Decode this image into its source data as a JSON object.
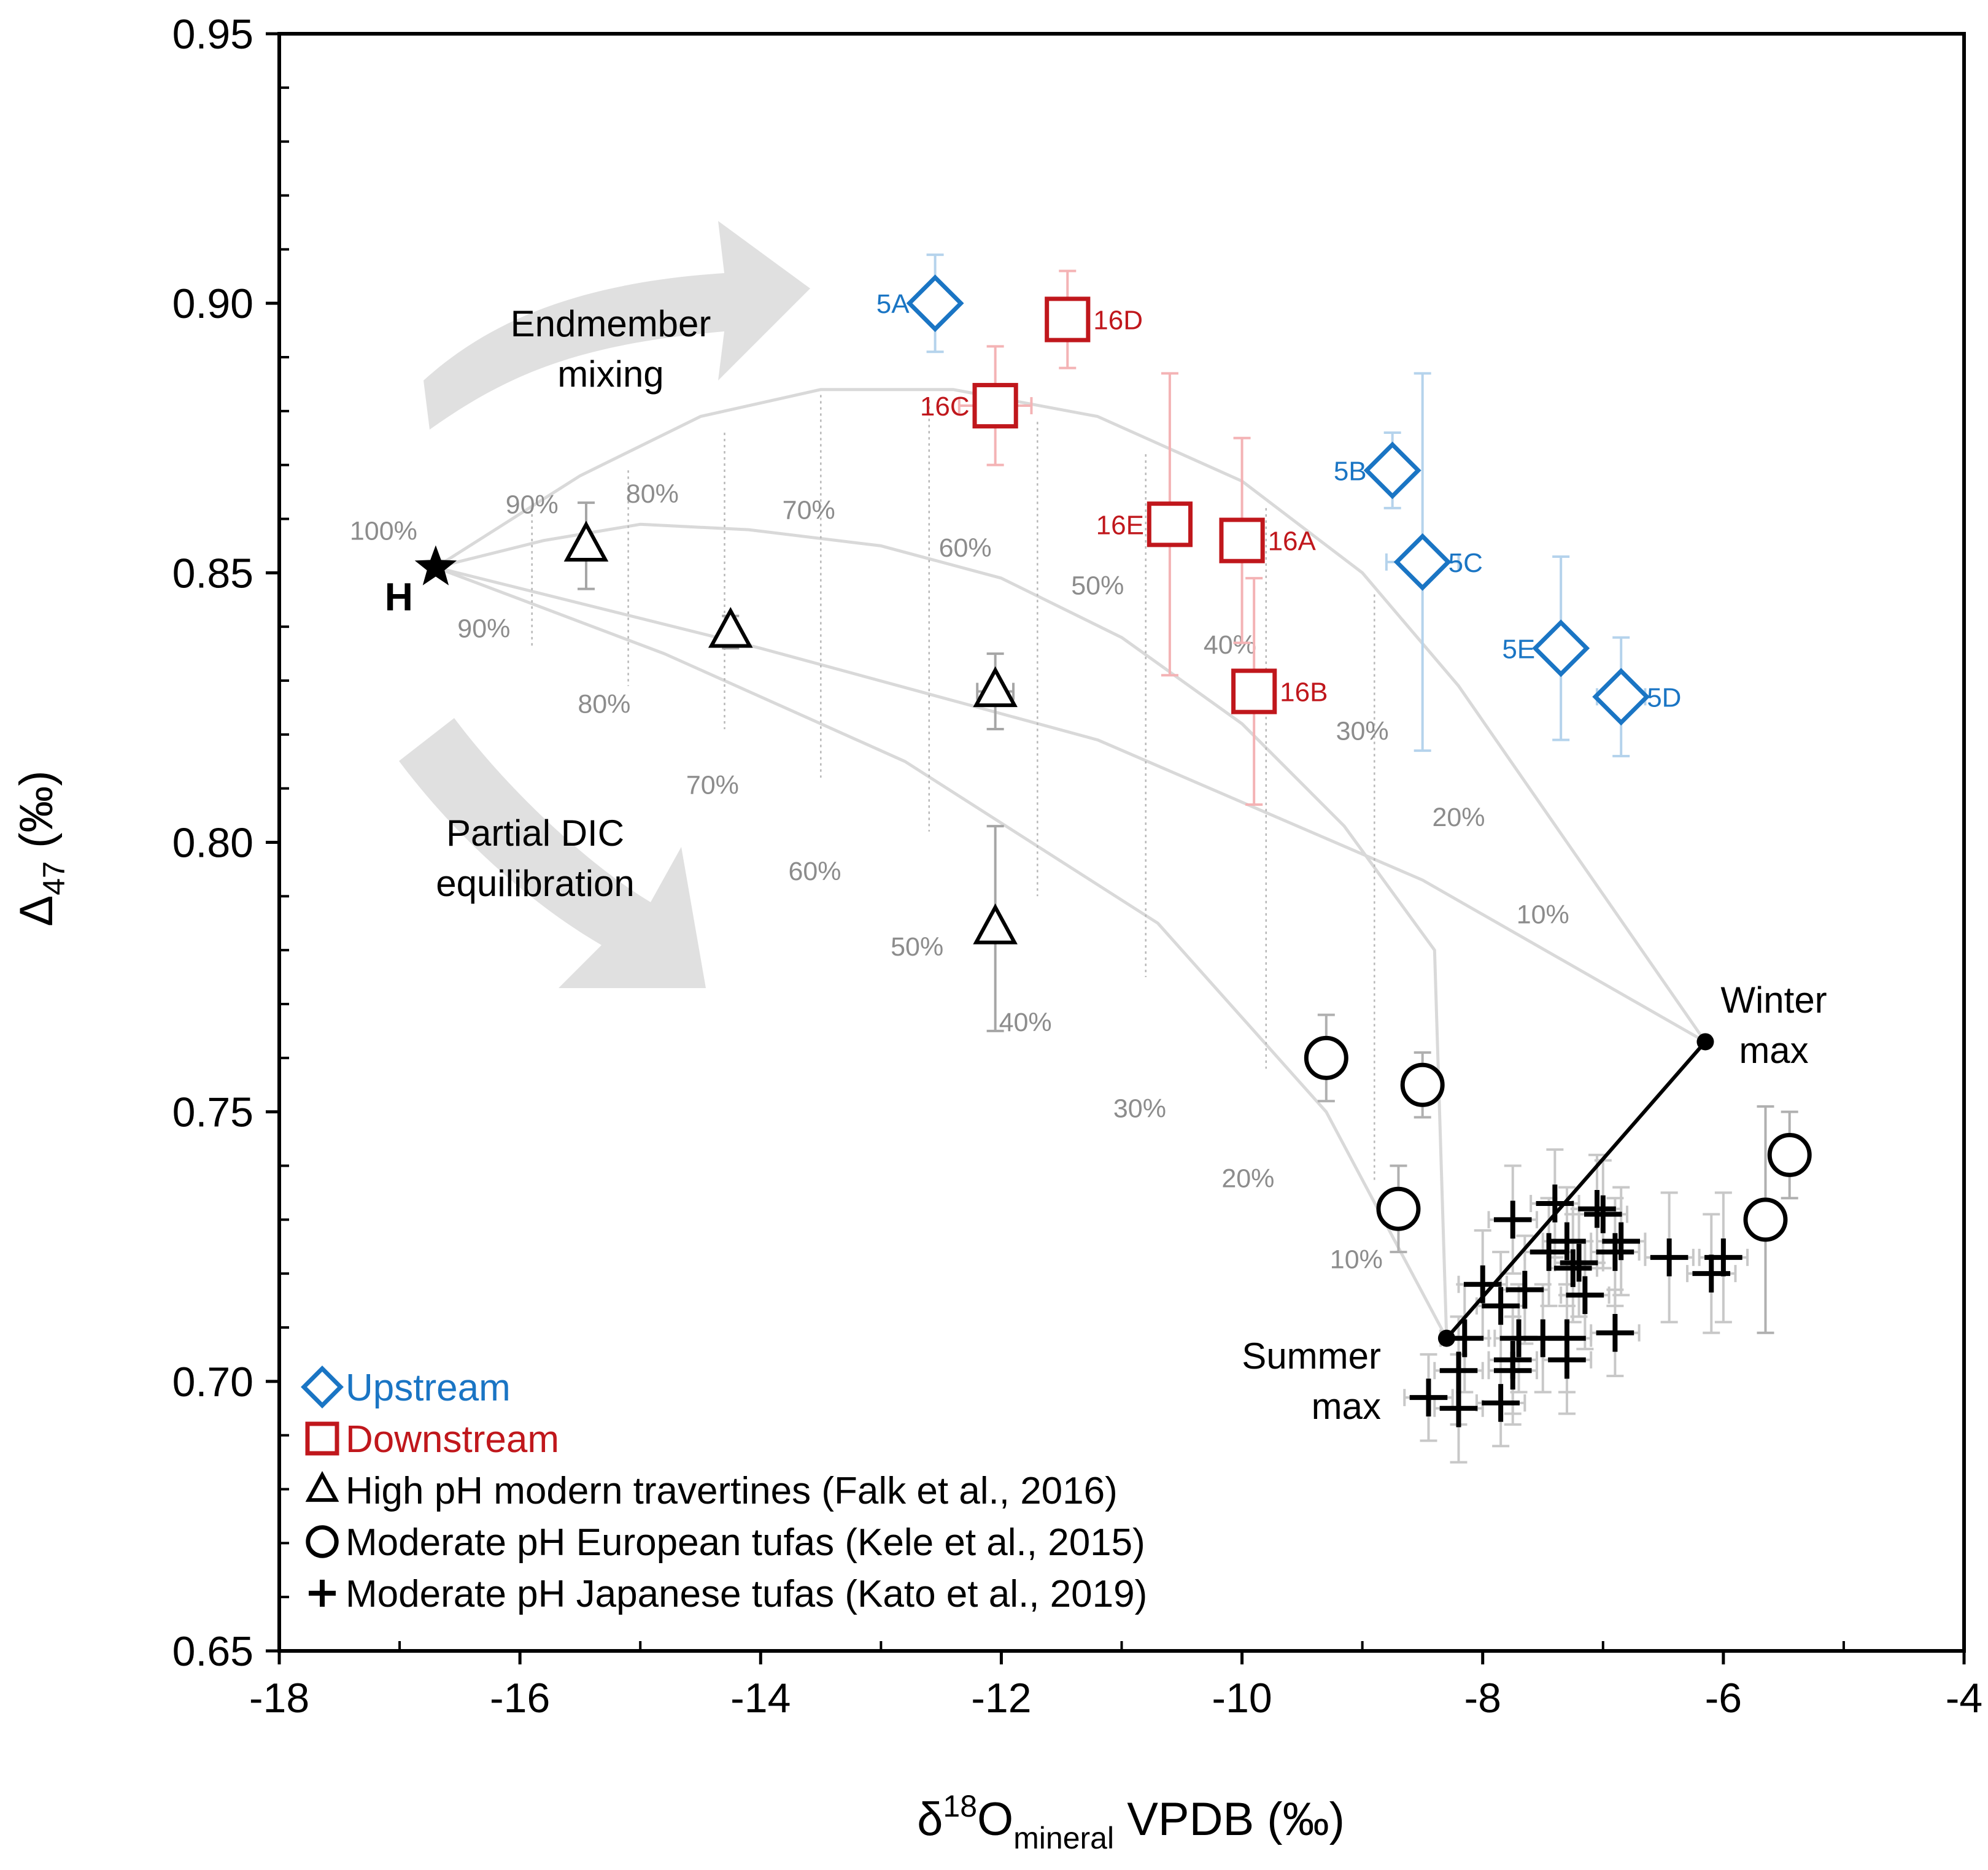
{
  "chart_data": {
    "type": "scatter",
    "xlim": [
      -18,
      -4
    ],
    "ylim": [
      0.65,
      0.95
    ],
    "x_ticks": [
      -18,
      -16,
      -14,
      -12,
      -10,
      -8,
      -6,
      -4
    ],
    "x_tick_labels": [
      "-18",
      "-16",
      "-14",
      "-12",
      "-10",
      "-8",
      "-6",
      "-4"
    ],
    "y_ticks": [
      0.65,
      0.7,
      0.75,
      0.8,
      0.85,
      0.9,
      0.95
    ],
    "y_tick_labels": [
      "0.65",
      "0.70",
      "0.75",
      "0.80",
      "0.85",
      "0.90",
      "0.95"
    ],
    "xlabel": {
      "pre": "δ",
      "sup": "18",
      "base": "O",
      "sub": "mineral",
      "post": " VPDB (‰)"
    },
    "ylabel": {
      "pre": "Δ",
      "sub": "47",
      "post": " (‰)"
    },
    "legend_position": "bottom-left",
    "legend": [
      {
        "key": "upstream",
        "label": "Upstream",
        "marker": "diamond",
        "color": "#1a75c4"
      },
      {
        "key": "downstream",
        "label": "Downstream",
        "marker": "square",
        "color": "#c0171c"
      },
      {
        "key": "travertine",
        "label": "High pH modern travertines (Falk et al., 2016)",
        "marker": "triangle",
        "color": "#000000"
      },
      {
        "key": "european",
        "label": "Moderate pH European tufas (Kele et al., 2015)",
        "marker": "circle",
        "color": "#000000"
      },
      {
        "key": "japanese",
        "label": "Moderate pH Japanese tufas (Kato et al., 2019)",
        "marker": "plus",
        "color": "#000000"
      }
    ],
    "series": [
      {
        "name": "Upstream",
        "marker": "diamond",
        "color": "#1a75c4",
        "error_color": "#b5d3ec",
        "points": [
          {
            "label": "5A",
            "x": -12.55,
            "y": 0.9,
            "yerr": 0.009,
            "xerr": 0,
            "label_side": "left"
          },
          {
            "label": "5B",
            "x": -8.75,
            "y": 0.869,
            "yerr": 0.007,
            "xerr": 0,
            "label_side": "left"
          },
          {
            "label": "5C",
            "x": -8.5,
            "y": 0.852,
            "yerr": 0.035,
            "xerr": 0.3,
            "label_side": "right"
          },
          {
            "label": "5E",
            "x": -7.35,
            "y": 0.836,
            "yerr": 0.017,
            "xerr": 0,
            "label_side": "left"
          },
          {
            "label": "5D",
            "x": -6.85,
            "y": 0.827,
            "yerr": 0.011,
            "xerr": 0.2,
            "label_side": "right"
          }
        ]
      },
      {
        "name": "Downstream",
        "marker": "square",
        "color": "#c0171c",
        "error_color": "#f4b3b5",
        "points": [
          {
            "label": "16D",
            "x": -11.45,
            "y": 0.897,
            "yerr": 0.009,
            "xerr": 0,
            "label_side": "right"
          },
          {
            "label": "16C",
            "x": -12.05,
            "y": 0.881,
            "yerr": 0.011,
            "xerr": 0.3,
            "label_side": "left"
          },
          {
            "label": "16E",
            "x": -10.6,
            "y": 0.859,
            "yerr": 0.028,
            "xerr": 0,
            "label_side": "left"
          },
          {
            "label": "16A",
            "x": -10.0,
            "y": 0.856,
            "yerr": 0.019,
            "xerr": 0,
            "label_side": "right"
          },
          {
            "label": "16B",
            "x": -9.9,
            "y": 0.828,
            "yerr": 0.021,
            "xerr": 0,
            "label_side": "right"
          }
        ]
      },
      {
        "name": "High pH modern travertines (Falk et al., 2016)",
        "marker": "triangle",
        "color": "#000000",
        "error_color": "#a6a6a6",
        "points": [
          {
            "x": -15.45,
            "y": 0.855,
            "yerr": 0.008,
            "xerr": 0
          },
          {
            "x": -14.25,
            "y": 0.839,
            "yerr": 0.003,
            "xerr": 0
          },
          {
            "x": -12.05,
            "y": 0.828,
            "yerr": 0.007,
            "xerr": 0.15
          },
          {
            "x": -12.05,
            "y": 0.784,
            "yerr": 0.019,
            "xerr": 0
          }
        ]
      },
      {
        "name": "Moderate pH European tufas (Kele et al., 2015)",
        "marker": "circle",
        "color": "#000000",
        "error_color": "#b0b0b0",
        "points": [
          {
            "x": -9.3,
            "y": 0.76,
            "yerr": 0.008,
            "xerr": 0.12
          },
          {
            "x": -8.5,
            "y": 0.755,
            "yerr": 0.006,
            "xerr": 0.12
          },
          {
            "x": -8.7,
            "y": 0.732,
            "yerr": 0.008,
            "xerr": 0.12
          },
          {
            "x": -5.45,
            "y": 0.742,
            "yerr": 0.008,
            "xerr": 0.12
          },
          {
            "x": -5.65,
            "y": 0.73,
            "yerr": 0.021,
            "xerr": 0.12
          }
        ]
      },
      {
        "name": "Moderate pH Japanese tufas (Kato et al., 2019)",
        "marker": "plus",
        "color": "#000000",
        "error_color": "#c8c8c8",
        "points": [
          {
            "x": -7.05,
            "y": 0.732,
            "yerr": 0.01,
            "xerr": 0.2
          },
          {
            "x": -7.0,
            "y": 0.731,
            "yerr": 0.01,
            "xerr": 0.2
          },
          {
            "x": -7.4,
            "y": 0.733,
            "yerr": 0.01,
            "xerr": 0.2
          },
          {
            "x": -7.75,
            "y": 0.73,
            "yerr": 0.01,
            "xerr": 0.2
          },
          {
            "x": -7.3,
            "y": 0.726,
            "yerr": 0.01,
            "xerr": 0.2
          },
          {
            "x": -6.85,
            "y": 0.726,
            "yerr": 0.01,
            "xerr": 0.2
          },
          {
            "x": -7.45,
            "y": 0.724,
            "yerr": 0.01,
            "xerr": 0.2
          },
          {
            "x": -6.9,
            "y": 0.724,
            "yerr": 0.01,
            "xerr": 0.2
          },
          {
            "x": -7.25,
            "y": 0.721,
            "yerr": 0.01,
            "xerr": 0.2
          },
          {
            "x": -7.2,
            "y": 0.722,
            "yerr": 0.01,
            "xerr": 0.2
          },
          {
            "x": -6.45,
            "y": 0.723,
            "yerr": 0.012,
            "xerr": 0.2
          },
          {
            "x": -6.0,
            "y": 0.723,
            "yerr": 0.012,
            "xerr": 0.2
          },
          {
            "x": -6.1,
            "y": 0.72,
            "yerr": 0.011,
            "xerr": 0.2
          },
          {
            "x": -8.0,
            "y": 0.718,
            "yerr": 0.01,
            "xerr": 0.2
          },
          {
            "x": -7.65,
            "y": 0.717,
            "yerr": 0.01,
            "xerr": 0.2
          },
          {
            "x": -7.15,
            "y": 0.716,
            "yerr": 0.01,
            "xerr": 0.2
          },
          {
            "x": -7.85,
            "y": 0.714,
            "yerr": 0.01,
            "xerr": 0.2
          },
          {
            "x": -7.5,
            "y": 0.708,
            "yerr": 0.01,
            "xerr": 0.2
          },
          {
            "x": -8.15,
            "y": 0.708,
            "yerr": 0.01,
            "xerr": 0.2
          },
          {
            "x": -7.7,
            "y": 0.708,
            "yerr": 0.01,
            "xerr": 0.2
          },
          {
            "x": -7.3,
            "y": 0.708,
            "yerr": 0.01,
            "xerr": 0.2
          },
          {
            "x": -6.9,
            "y": 0.709,
            "yerr": 0.008,
            "xerr": 0.2
          },
          {
            "x": -7.75,
            "y": 0.704,
            "yerr": 0.01,
            "xerr": 0.2
          },
          {
            "x": -7.3,
            "y": 0.704,
            "yerr": 0.01,
            "xerr": 0.2
          },
          {
            "x": -8.2,
            "y": 0.702,
            "yerr": 0.01,
            "xerr": 0.2
          },
          {
            "x": -7.75,
            "y": 0.702,
            "yerr": 0.01,
            "xerr": 0.2
          },
          {
            "x": -8.45,
            "y": 0.697,
            "yerr": 0.008,
            "xerr": 0.2
          },
          {
            "x": -8.2,
            "y": 0.695,
            "yerr": 0.01,
            "xerr": 0.2
          },
          {
            "x": -7.85,
            "y": 0.696,
            "yerr": 0.008,
            "xerr": 0.2
          }
        ]
      }
    ],
    "endmembers": {
      "H": {
        "label": "H",
        "x": -16.7,
        "y": 0.851,
        "pct_label": "100%"
      },
      "winter": {
        "label_lines": [
          "Winter",
          "max"
        ],
        "x": -6.15,
        "y": 0.763
      },
      "summer": {
        "label_lines": [
          "Summer",
          "max"
        ],
        "x": -8.3,
        "y": 0.708
      },
      "equilibrium_line_color": "#000000"
    },
    "model_curves": {
      "color": "#d9d9d9",
      "mixing_curves": [
        [
          [
            -16.7,
            0.851
          ],
          [
            -15.5,
            0.868
          ],
          [
            -14.5,
            0.879
          ],
          [
            -13.5,
            0.884
          ],
          [
            -12.4,
            0.884
          ],
          [
            -11.2,
            0.879
          ],
          [
            -10.0,
            0.867
          ],
          [
            -9.0,
            0.85
          ],
          [
            -8.2,
            0.829
          ],
          [
            -7.3,
            0.8
          ],
          [
            -6.15,
            0.763
          ]
        ],
        [
          [
            -16.7,
            0.851
          ],
          [
            -15.8,
            0.856
          ],
          [
            -15.0,
            0.859
          ],
          [
            -14.1,
            0.858
          ],
          [
            -13.0,
            0.855
          ],
          [
            -12.0,
            0.849
          ],
          [
            -11.0,
            0.838
          ],
          [
            -10.0,
            0.822
          ],
          [
            -9.15,
            0.803
          ],
          [
            -8.4,
            0.78
          ],
          [
            -8.3,
            0.708
          ]
        ],
        [
          [
            -16.7,
            0.851
          ],
          [
            -14.0,
            0.836
          ],
          [
            -11.2,
            0.819
          ],
          [
            -8.5,
            0.793
          ],
          [
            -6.15,
            0.763
          ]
        ],
        [
          [
            -16.7,
            0.851
          ],
          [
            -14.8,
            0.835
          ],
          [
            -12.8,
            0.815
          ],
          [
            -10.7,
            0.785
          ],
          [
            -9.3,
            0.75
          ],
          [
            -8.3,
            0.708
          ]
        ]
      ],
      "tie_lines": [
        [
          [
            -15.9,
            0.862
          ],
          [
            -15.9,
            0.836
          ]
        ],
        [
          [
            -15.1,
            0.869
          ],
          [
            -15.1,
            0.829
          ]
        ],
        [
          [
            -14.3,
            0.876
          ],
          [
            -14.3,
            0.821
          ]
        ],
        [
          [
            -13.5,
            0.883
          ],
          [
            -13.5,
            0.812
          ]
        ],
        [
          [
            -12.6,
            0.882
          ],
          [
            -12.6,
            0.802
          ]
        ],
        [
          [
            -11.7,
            0.878
          ],
          [
            -11.7,
            0.79
          ]
        ],
        [
          [
            -10.8,
            0.872
          ],
          [
            -10.8,
            0.775
          ]
        ],
        [
          [
            -9.8,
            0.862
          ],
          [
            -9.8,
            0.758
          ]
        ],
        [
          [
            -8.9,
            0.846
          ],
          [
            -8.9,
            0.737
          ]
        ]
      ],
      "pct_labels_upper": [
        {
          "text": "90%",
          "x": -15.9,
          "y": 0.861
        },
        {
          "text": "80%",
          "x": -14.9,
          "y": 0.863
        },
        {
          "text": "70%",
          "x": -13.6,
          "y": 0.86
        },
        {
          "text": "60%",
          "x": -12.3,
          "y": 0.853
        },
        {
          "text": "50%",
          "x": -11.2,
          "y": 0.846
        },
        {
          "text": "40%",
          "x": -10.1,
          "y": 0.835
        },
        {
          "text": "30%",
          "x": -9.0,
          "y": 0.819
        },
        {
          "text": "20%",
          "x": -8.2,
          "y": 0.803
        },
        {
          "text": "10%",
          "x": -7.5,
          "y": 0.785
        }
      ],
      "pct_labels_lower": [
        {
          "text": "90%",
          "x": -16.3,
          "y": 0.838
        },
        {
          "text": "80%",
          "x": -15.3,
          "y": 0.824
        },
        {
          "text": "70%",
          "x": -14.4,
          "y": 0.809
        },
        {
          "text": "60%",
          "x": -13.55,
          "y": 0.793
        },
        {
          "text": "50%",
          "x": -12.7,
          "y": 0.779
        },
        {
          "text": "40%",
          "x": -11.8,
          "y": 0.765
        },
        {
          "text": "30%",
          "x": -10.85,
          "y": 0.749
        },
        {
          "text": "20%",
          "x": -9.95,
          "y": 0.736
        },
        {
          "text": "10%",
          "x": -9.05,
          "y": 0.721
        }
      ]
    },
    "annotations": {
      "mixing_arrow_label": [
        "Endmember",
        "mixing"
      ],
      "equilibration_arrow_label": [
        "Partial DIC",
        "equilibration"
      ],
      "arrow_color": "#e0e0e0"
    }
  }
}
